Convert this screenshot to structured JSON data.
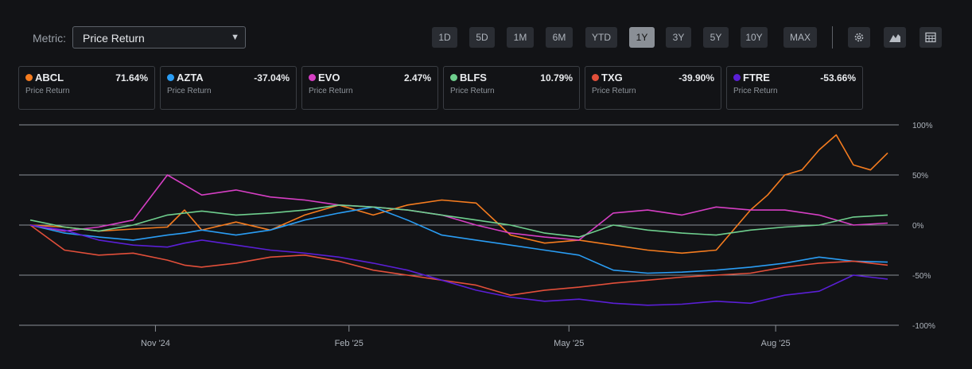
{
  "metric": {
    "label": "Metric:",
    "value": "Price Return"
  },
  "ranges": [
    "1D",
    "5D",
    "1M",
    "6M",
    "YTD",
    "1Y",
    "3Y",
    "5Y",
    "10Y",
    "MAX"
  ],
  "active_range": "1Y",
  "tools": [
    "gear-icon",
    "mountain-chart-icon",
    "table-icon"
  ],
  "cards": [
    {
      "symbol": "ABCL",
      "value": "71.64%",
      "sub": "Price Return",
      "color": "#f57c1f"
    },
    {
      "symbol": "AZTA",
      "value": "-37.04%",
      "sub": "Price Return",
      "color": "#2a9df4"
    },
    {
      "symbol": "EVO",
      "value": "2.47%",
      "sub": "Price Return",
      "color": "#d63fc4"
    },
    {
      "symbol": "BLFS",
      "value": "10.79%",
      "sub": "Price Return",
      "color": "#6fcf8e"
    },
    {
      "symbol": "TXG",
      "value": "-39.90%",
      "sub": "Price Return",
      "color": "#e24f3a"
    },
    {
      "symbol": "FTRE",
      "value": "-53.66%",
      "sub": "Price Return",
      "color": "#5a1fd6"
    }
  ],
  "chart_data": {
    "type": "line",
    "y_ticks": [
      "100%",
      "50%",
      "0%",
      "-50%",
      "-100%"
    ],
    "ylim": [
      -100,
      100
    ],
    "x_labels": [
      "Nov '24",
      "Feb '25",
      "May '25",
      "Aug '25"
    ],
    "x_label_positions": [
      0.155,
      0.375,
      0.625,
      0.86
    ],
    "xlim": [
      0,
      100
    ],
    "series": [
      {
        "name": "ABCL",
        "color": "#f57c1f",
        "x": [
          0,
          4,
          8,
          12,
          16,
          18,
          20,
          24,
          28,
          32,
          36,
          40,
          44,
          48,
          52,
          56,
          60,
          64,
          68,
          72,
          76,
          80,
          84,
          86,
          88,
          90,
          92,
          94,
          96,
          98,
          100
        ],
        "y": [
          0,
          -2,
          -6,
          -4,
          -2,
          15,
          -5,
          3,
          -5,
          10,
          20,
          10,
          20,
          25,
          22,
          -10,
          -18,
          -15,
          -20,
          -25,
          -28,
          -25,
          15,
          30,
          50,
          55,
          75,
          90,
          60,
          55,
          72
        ]
      },
      {
        "name": "AZTA",
        "color": "#2a9df4",
        "x": [
          0,
          4,
          8,
          12,
          16,
          18,
          20,
          24,
          28,
          32,
          36,
          40,
          44,
          48,
          52,
          56,
          60,
          64,
          68,
          72,
          76,
          80,
          84,
          88,
          92,
          96,
          100
        ],
        "y": [
          0,
          -8,
          -12,
          -15,
          -10,
          -8,
          -5,
          -10,
          -5,
          5,
          12,
          18,
          5,
          -10,
          -15,
          -20,
          -25,
          -30,
          -45,
          -48,
          -47,
          -45,
          -42,
          -38,
          -32,
          -36,
          -37
        ]
      },
      {
        "name": "EVO",
        "color": "#d63fc4",
        "x": [
          0,
          4,
          8,
          12,
          16,
          18,
          20,
          24,
          28,
          32,
          36,
          40,
          44,
          48,
          52,
          56,
          60,
          64,
          68,
          72,
          76,
          80,
          84,
          88,
          92,
          96,
          100
        ],
        "y": [
          0,
          -6,
          -2,
          5,
          50,
          40,
          30,
          35,
          28,
          25,
          20,
          18,
          15,
          10,
          0,
          -8,
          -12,
          -15,
          12,
          15,
          10,
          18,
          15,
          15,
          10,
          0,
          2
        ]
      },
      {
        "name": "BLFS",
        "color": "#6fcf8e",
        "x": [
          0,
          4,
          8,
          12,
          16,
          18,
          20,
          24,
          28,
          32,
          36,
          40,
          44,
          48,
          52,
          56,
          60,
          64,
          68,
          72,
          76,
          80,
          84,
          88,
          92,
          96,
          100
        ],
        "y": [
          5,
          -2,
          -6,
          0,
          10,
          12,
          14,
          10,
          12,
          15,
          20,
          18,
          15,
          10,
          5,
          0,
          -8,
          -12,
          0,
          -5,
          -8,
          -10,
          -5,
          -2,
          0,
          8,
          10
        ]
      },
      {
        "name": "TXG",
        "color": "#e24f3a",
        "x": [
          0,
          4,
          8,
          12,
          16,
          18,
          20,
          24,
          28,
          32,
          36,
          40,
          44,
          48,
          52,
          56,
          60,
          64,
          68,
          72,
          76,
          80,
          84,
          88,
          92,
          96,
          100
        ],
        "y": [
          0,
          -25,
          -30,
          -28,
          -35,
          -40,
          -42,
          -38,
          -32,
          -30,
          -36,
          -45,
          -50,
          -55,
          -60,
          -70,
          -65,
          -62,
          -58,
          -55,
          -52,
          -50,
          -48,
          -42,
          -38,
          -36,
          -40
        ]
      },
      {
        "name": "FTRE",
        "color": "#5a1fd6",
        "x": [
          0,
          4,
          8,
          12,
          16,
          18,
          20,
          24,
          28,
          32,
          36,
          40,
          44,
          48,
          52,
          56,
          60,
          64,
          68,
          72,
          76,
          80,
          84,
          88,
          92,
          96,
          100
        ],
        "y": [
          0,
          -5,
          -15,
          -20,
          -22,
          -18,
          -15,
          -20,
          -25,
          -28,
          -32,
          -38,
          -45,
          -55,
          -65,
          -72,
          -76,
          -74,
          -78,
          -80,
          -79,
          -76,
          -78,
          -70,
          -66,
          -50,
          -54
        ]
      }
    ]
  }
}
